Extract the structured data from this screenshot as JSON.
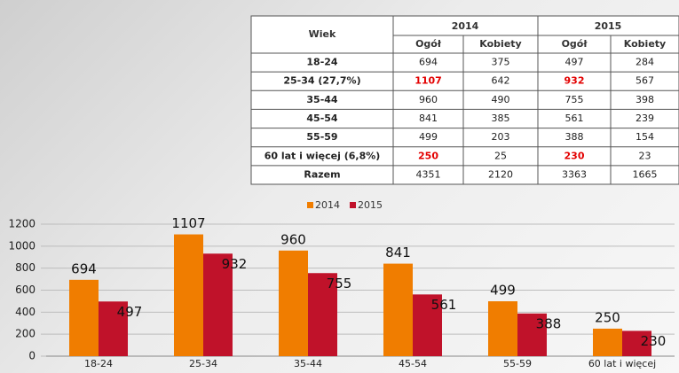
{
  "table": {
    "header": [
      "Wiek",
      "2014",
      "2015"
    ],
    "subheader": [
      "Ogół",
      "Kobiety",
      "Ogół",
      "Kobiety"
    ],
    "rows": [
      [
        "18-24",
        "694",
        "375",
        "497",
        "284"
      ],
      [
        "25-34 (27,7%)",
        "1107",
        "642",
        "932",
        "567"
      ],
      [
        "35-44",
        "960",
        "490",
        "755",
        "398"
      ],
      [
        "45-54",
        "841",
        "385",
        "561",
        "239"
      ],
      [
        "55-59",
        "499",
        "203",
        "388",
        "154"
      ],
      [
        "60 lat i więcej (6,8%)",
        "250",
        "25",
        "230",
        "23"
      ],
      [
        "Razem",
        "4351",
        "2120",
        "3363",
        "1665"
      ]
    ],
    "highlight_color": "#e30000",
    "highlighted_cells": [
      [
        1,
        1
      ],
      [
        1,
        3
      ],
      [
        5,
        1
      ],
      [
        5,
        3
      ]
    ]
  },
  "chart_data": {
    "type": "bar",
    "categories": [
      "18-24",
      "25-34",
      "35-44",
      "45-54",
      "55-59",
      "60 lat i więcej"
    ],
    "series": [
      {
        "name": "2014",
        "color": "#f07d00",
        "values": [
          694,
          1107,
          960,
          841,
          499,
          250
        ]
      },
      {
        "name": "2015",
        "color": "#c0122a",
        "values": [
          497,
          932,
          755,
          561,
          388,
          230
        ]
      }
    ],
    "ylim": [
      0,
      1200
    ],
    "yticks": [
      0,
      200,
      400,
      600,
      800,
      1000,
      1200
    ],
    "grid": true,
    "legend": "top"
  }
}
